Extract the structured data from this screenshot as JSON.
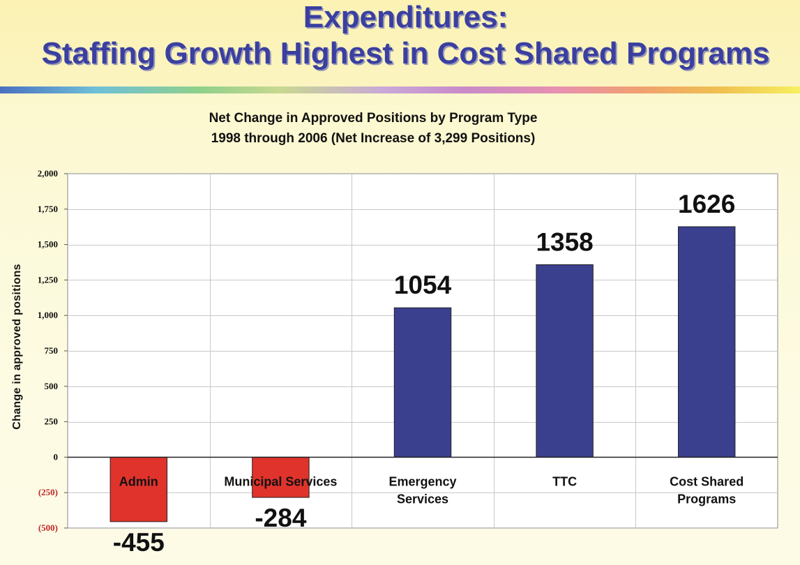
{
  "header": {
    "title_line1": "Expenditures:",
    "title_line2": "Staffing Growth Highest in Cost Shared Programs"
  },
  "colors": {
    "title": "#3a3fa0",
    "positive_bar": "#3a3f8e",
    "negative_bar": "#e0332b",
    "negative_tick": "#c0282a"
  },
  "chart_data": {
    "type": "bar",
    "title": "Net Change in Approved Positions by Program Type",
    "subtitle": "1998 through 2006 (Net Increase of 3,299 Positions)",
    "ylabel": "Change in approved positions",
    "xlabel": "",
    "categories": [
      "Admin",
      "Municipal Services",
      "Emergency Services",
      "TTC",
      "Cost Shared Programs"
    ],
    "category_lines": [
      [
        "Admin"
      ],
      [
        "Municipal Services"
      ],
      [
        "Emergency",
        "Services"
      ],
      [
        "TTC"
      ],
      [
        "Cost Shared",
        "Programs"
      ]
    ],
    "values": [
      -455,
      -284,
      1054,
      1358,
      1626
    ],
    "data_labels": [
      "-455",
      "-284",
      "1054",
      "1358",
      "1626"
    ],
    "ylim": [
      -500,
      2000
    ],
    "yticks": [
      2000,
      1750,
      1500,
      1250,
      1000,
      750,
      500,
      250,
      0,
      -250,
      -500
    ],
    "ytick_labels": [
      "2,000",
      "1,750",
      "1,500",
      "1,250",
      "1,000",
      "750",
      "500",
      "250",
      "0",
      "(250)",
      "(500)"
    ],
    "grid": true,
    "legend": "none"
  }
}
